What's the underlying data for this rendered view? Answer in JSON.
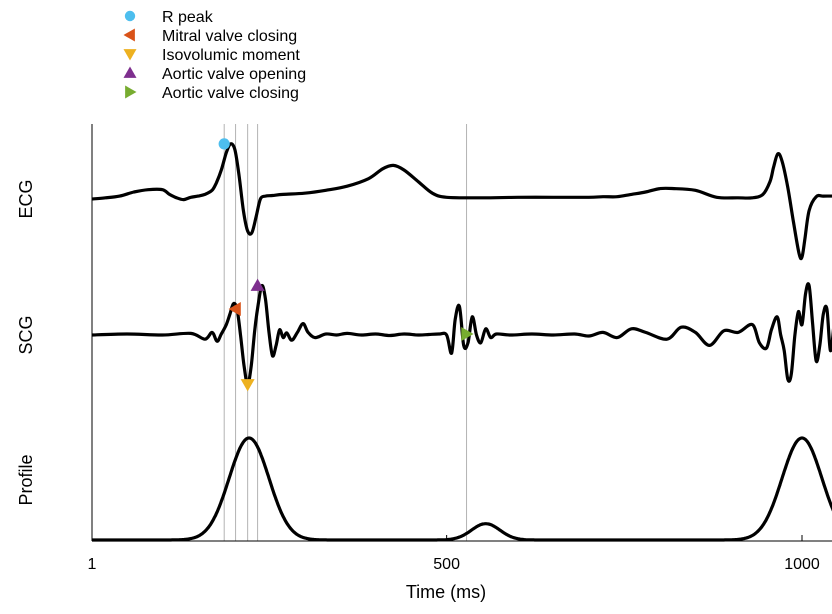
{
  "chart_data": {
    "type": "line",
    "xlabel": "Time (ms)",
    "x_ticks": [
      {
        "value": 1,
        "label": "1"
      },
      {
        "value": 500,
        "label": "500"
      },
      {
        "value": 1000,
        "label": "1000"
      }
    ],
    "xlim": [
      1,
      1045
    ],
    "panels": [
      {
        "id": "ecg",
        "ylabel": "ECG"
      },
      {
        "id": "scg",
        "ylabel": "SCG"
      },
      {
        "id": "profile",
        "ylabel": "Profile"
      }
    ],
    "series": [
      {
        "panel": "ecg",
        "x": [
          1,
          20,
          40,
          60,
          80,
          100,
          110,
          120,
          130,
          140,
          150,
          160,
          170,
          176,
          183,
          190,
          196,
          202,
          208,
          214,
          220,
          226,
          232,
          238,
          245,
          255,
          270,
          300,
          330,
          360,
          390,
          410,
          425,
          440,
          460,
          480,
          500,
          550,
          600,
          650,
          700,
          720,
          740,
          760,
          780,
          800,
          820,
          850,
          880,
          910,
          930,
          945,
          955,
          960,
          966,
          972,
          980,
          988,
          996,
          1000,
          1004,
          1010,
          1020,
          1030,
          1045
        ],
        "values": [
          0,
          0.02,
          0.05,
          0.12,
          0.16,
          0.16,
          0.08,
          0.02,
          -0.01,
          0.03,
          0.05,
          0.08,
          0.15,
          0.28,
          0.5,
          0.8,
          0.95,
          0.85,
          0.4,
          -0.2,
          -0.55,
          -0.58,
          -0.3,
          0.0,
          0.05,
          0.06,
          0.08,
          0.1,
          0.15,
          0.22,
          0.35,
          0.52,
          0.58,
          0.5,
          0.3,
          0.1,
          0.03,
          0.02,
          0.03,
          0.03,
          0.03,
          0.04,
          0.04,
          0.08,
          0.12,
          0.18,
          0.18,
          0.15,
          0.03,
          0.02,
          0.02,
          0.08,
          0.3,
          0.55,
          0.78,
          0.65,
          0.2,
          -0.4,
          -0.95,
          -1.0,
          -0.7,
          -0.2,
          0.04,
          0.05,
          0.05
        ]
      },
      {
        "panel": "scg",
        "x": [
          1,
          50,
          100,
          140,
          160,
          170,
          177,
          183,
          190,
          195,
          200,
          205,
          210,
          215,
          220,
          225,
          230,
          235,
          240,
          245,
          250,
          255,
          260,
          265,
          270,
          275,
          282,
          290,
          298,
          305,
          315,
          330,
          345,
          360,
          380,
          400,
          420,
          440,
          460,
          475,
          490,
          500,
          507,
          512,
          518,
          524,
          530,
          536,
          542,
          548,
          555,
          562,
          570,
          590,
          620,
          650,
          680,
          700,
          720,
          740,
          760,
          780,
          810,
          830,
          850,
          870,
          890,
          910,
          930,
          940,
          950,
          957,
          965,
          970,
          975,
          980,
          985,
          990,
          995,
          1000,
          1005,
          1010,
          1015,
          1020,
          1025,
          1030,
          1035,
          1040,
          1045
        ],
        "values": [
          0,
          0.02,
          0.0,
          0.03,
          -0.08,
          0.05,
          -0.12,
          0.02,
          0.2,
          0.4,
          0.6,
          0.5,
          0.0,
          -0.6,
          -0.95,
          -0.6,
          0.1,
          0.6,
          0.95,
          0.7,
          0.05,
          -0.4,
          -0.2,
          0.1,
          -0.05,
          0.04,
          -0.1,
          0.05,
          0.22,
          0.05,
          -0.05,
          0.02,
          0.0,
          0.03,
          0.0,
          0.02,
          -0.01,
          0.02,
          0.0,
          0.01,
          0.02,
          0.0,
          -0.35,
          0.3,
          0.55,
          -0.2,
          -0.15,
          0.35,
          0.0,
          -0.15,
          0.12,
          -0.05,
          0.02,
          0.0,
          0.02,
          0.0,
          0.02,
          -0.02,
          0.05,
          -0.05,
          0.12,
          0.05,
          -0.08,
          0.15,
          0.05,
          -0.2,
          0.08,
          0.05,
          0.2,
          -0.15,
          -0.25,
          0.1,
          0.35,
          0.0,
          -0.3,
          -0.85,
          -0.75,
          0.0,
          0.45,
          0.2,
          0.8,
          0.95,
          0.2,
          -0.5,
          -0.2,
          0.4,
          0.5,
          -0.3,
          0.2
        ]
      },
      {
        "panel": "profile",
        "peaks": [
          {
            "center": 222,
            "height": 1.0,
            "width": 28
          },
          {
            "center": 555,
            "height": 0.16,
            "width": 20
          },
          {
            "center": 1000,
            "height": 1.0,
            "width": 28
          }
        ]
      }
    ],
    "markers": [
      {
        "name": "R peak",
        "shape": "circle",
        "color": "#4dbeee",
        "panel": "ecg",
        "x": 187,
        "y": 0.95
      },
      {
        "name": "Mitral valve closing",
        "shape": "triangle-left",
        "color": "#d95319",
        "panel": "scg",
        "x": 203,
        "y": 0.5
      },
      {
        "name": "Isovolumic moment",
        "shape": "triangle-down",
        "color": "#edb120",
        "panel": "scg",
        "x": 220,
        "y": -0.95
      },
      {
        "name": "Aortic valve opening",
        "shape": "triangle-up",
        "color": "#7e2f8e",
        "panel": "scg",
        "x": 234,
        "y": 0.95
      },
      {
        "name": "Aortic valve closing",
        "shape": "triangle-right",
        "color": "#77ac30",
        "panel": "scg",
        "x": 528,
        "y": 0.02
      }
    ],
    "vertical_lines": [
      187,
      203,
      220,
      234,
      528
    ],
    "legend": {
      "placement": "top-left"
    }
  }
}
